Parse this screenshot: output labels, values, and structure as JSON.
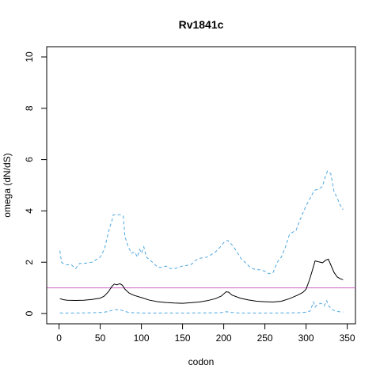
{
  "chart_data": {
    "type": "line",
    "title": "Rv1841c",
    "xlabel": "codon",
    "ylabel": "omega (dN/dS)",
    "xlim": [
      -15,
      360
    ],
    "ylim": [
      -0.4,
      10.4
    ],
    "x_ticks": [
      0,
      50,
      100,
      150,
      200,
      250,
      300,
      350
    ],
    "y_ticks": [
      0,
      2,
      4,
      6,
      8,
      10
    ],
    "grid": false,
    "reference_line": {
      "y": 1,
      "color": "#CC66CC"
    },
    "series": [
      {
        "role": "mean",
        "color": "#000000",
        "dash": "solid",
        "points": [
          [
            1,
            0.58
          ],
          [
            5,
            0.54
          ],
          [
            10,
            0.52
          ],
          [
            20,
            0.51
          ],
          [
            30,
            0.52
          ],
          [
            40,
            0.55
          ],
          [
            50,
            0.6
          ],
          [
            55,
            0.68
          ],
          [
            60,
            0.85
          ],
          [
            64,
            1.05
          ],
          [
            67,
            1.15
          ],
          [
            70,
            1.12
          ],
          [
            74,
            1.16
          ],
          [
            77,
            1.1
          ],
          [
            80,
            0.95
          ],
          [
            85,
            0.8
          ],
          [
            90,
            0.72
          ],
          [
            100,
            0.62
          ],
          [
            110,
            0.52
          ],
          [
            120,
            0.46
          ],
          [
            130,
            0.43
          ],
          [
            140,
            0.41
          ],
          [
            150,
            0.4
          ],
          [
            160,
            0.42
          ],
          [
            170,
            0.45
          ],
          [
            180,
            0.5
          ],
          [
            190,
            0.58
          ],
          [
            197,
            0.68
          ],
          [
            203,
            0.85
          ],
          [
            206,
            0.83
          ],
          [
            210,
            0.72
          ],
          [
            220,
            0.6
          ],
          [
            230,
            0.53
          ],
          [
            240,
            0.48
          ],
          [
            250,
            0.46
          ],
          [
            260,
            0.45
          ],
          [
            270,
            0.48
          ],
          [
            280,
            0.58
          ],
          [
            290,
            0.72
          ],
          [
            296,
            0.82
          ],
          [
            300,
            0.95
          ],
          [
            304,
            1.3
          ],
          [
            308,
            1.72
          ],
          [
            311,
            2.05
          ],
          [
            315,
            2.02
          ],
          [
            320,
            1.98
          ],
          [
            324,
            2.08
          ],
          [
            327,
            2.12
          ],
          [
            330,
            1.9
          ],
          [
            334,
            1.6
          ],
          [
            338,
            1.42
          ],
          [
            342,
            1.35
          ],
          [
            345,
            1.32
          ]
        ]
      },
      {
        "role": "upper",
        "color": "#4FA8E0",
        "dash": "dashed",
        "points": [
          [
            1,
            2.45
          ],
          [
            3,
            2.0
          ],
          [
            5,
            1.95
          ],
          [
            10,
            1.9
          ],
          [
            15,
            1.9
          ],
          [
            20,
            1.75
          ],
          [
            25,
            1.95
          ],
          [
            30,
            1.95
          ],
          [
            40,
            2.0
          ],
          [
            50,
            2.2
          ],
          [
            55,
            2.5
          ],
          [
            58,
            2.9
          ],
          [
            61,
            3.3
          ],
          [
            64,
            3.6
          ],
          [
            66,
            3.85
          ],
          [
            75,
            3.85
          ],
          [
            78,
            3.8
          ],
          [
            80,
            3.0
          ],
          [
            84,
            2.6
          ],
          [
            88,
            2.35
          ],
          [
            92,
            2.4
          ],
          [
            95,
            2.2
          ],
          [
            98,
            2.5
          ],
          [
            100,
            2.35
          ],
          [
            103,
            2.6
          ],
          [
            106,
            2.2
          ],
          [
            110,
            2.1
          ],
          [
            115,
            1.95
          ],
          [
            120,
            1.8
          ],
          [
            125,
            1.8
          ],
          [
            130,
            1.85
          ],
          [
            135,
            1.75
          ],
          [
            140,
            1.75
          ],
          [
            150,
            1.85
          ],
          [
            160,
            1.9
          ],
          [
            165,
            2.05
          ],
          [
            170,
            2.15
          ],
          [
            180,
            2.2
          ],
          [
            190,
            2.4
          ],
          [
            196,
            2.6
          ],
          [
            201,
            2.8
          ],
          [
            205,
            2.85
          ],
          [
            208,
            2.75
          ],
          [
            212,
            2.6
          ],
          [
            218,
            2.3
          ],
          [
            222,
            2.1
          ],
          [
            226,
            2.0
          ],
          [
            232,
            1.8
          ],
          [
            238,
            1.72
          ],
          [
            244,
            1.7
          ],
          [
            250,
            1.65
          ],
          [
            255,
            1.55
          ],
          [
            260,
            1.6
          ],
          [
            265,
            2.0
          ],
          [
            270,
            2.2
          ],
          [
            275,
            2.6
          ],
          [
            280,
            3.1
          ],
          [
            288,
            3.25
          ],
          [
            292,
            3.6
          ],
          [
            296,
            3.9
          ],
          [
            300,
            4.2
          ],
          [
            305,
            4.5
          ],
          [
            310,
            4.8
          ],
          [
            315,
            4.85
          ],
          [
            320,
            4.95
          ],
          [
            323,
            5.3
          ],
          [
            326,
            5.55
          ],
          [
            330,
            5.45
          ],
          [
            334,
            4.75
          ],
          [
            338,
            4.5
          ],
          [
            341,
            4.25
          ],
          [
            345,
            4.05
          ]
        ]
      },
      {
        "role": "lower",
        "color": "#4FA8E0",
        "dash": "dashed",
        "points": [
          [
            1,
            0.02
          ],
          [
            20,
            0.02
          ],
          [
            40,
            0.03
          ],
          [
            55,
            0.05
          ],
          [
            62,
            0.1
          ],
          [
            67,
            0.15
          ],
          [
            74,
            0.15
          ],
          [
            78,
            0.1
          ],
          [
            85,
            0.04
          ],
          [
            100,
            0.02
          ],
          [
            150,
            0.02
          ],
          [
            195,
            0.03
          ],
          [
            203,
            0.07
          ],
          [
            210,
            0.04
          ],
          [
            220,
            0.02
          ],
          [
            260,
            0.02
          ],
          [
            290,
            0.03
          ],
          [
            300,
            0.05
          ],
          [
            305,
            0.1
          ],
          [
            309,
            0.45
          ],
          [
            311,
            0.25
          ],
          [
            314,
            0.35
          ],
          [
            318,
            0.4
          ],
          [
            322,
            0.3
          ],
          [
            325,
            0.5
          ],
          [
            328,
            0.28
          ],
          [
            332,
            0.15
          ],
          [
            336,
            0.1
          ],
          [
            340,
            0.07
          ],
          [
            345,
            0.06
          ]
        ]
      }
    ]
  }
}
